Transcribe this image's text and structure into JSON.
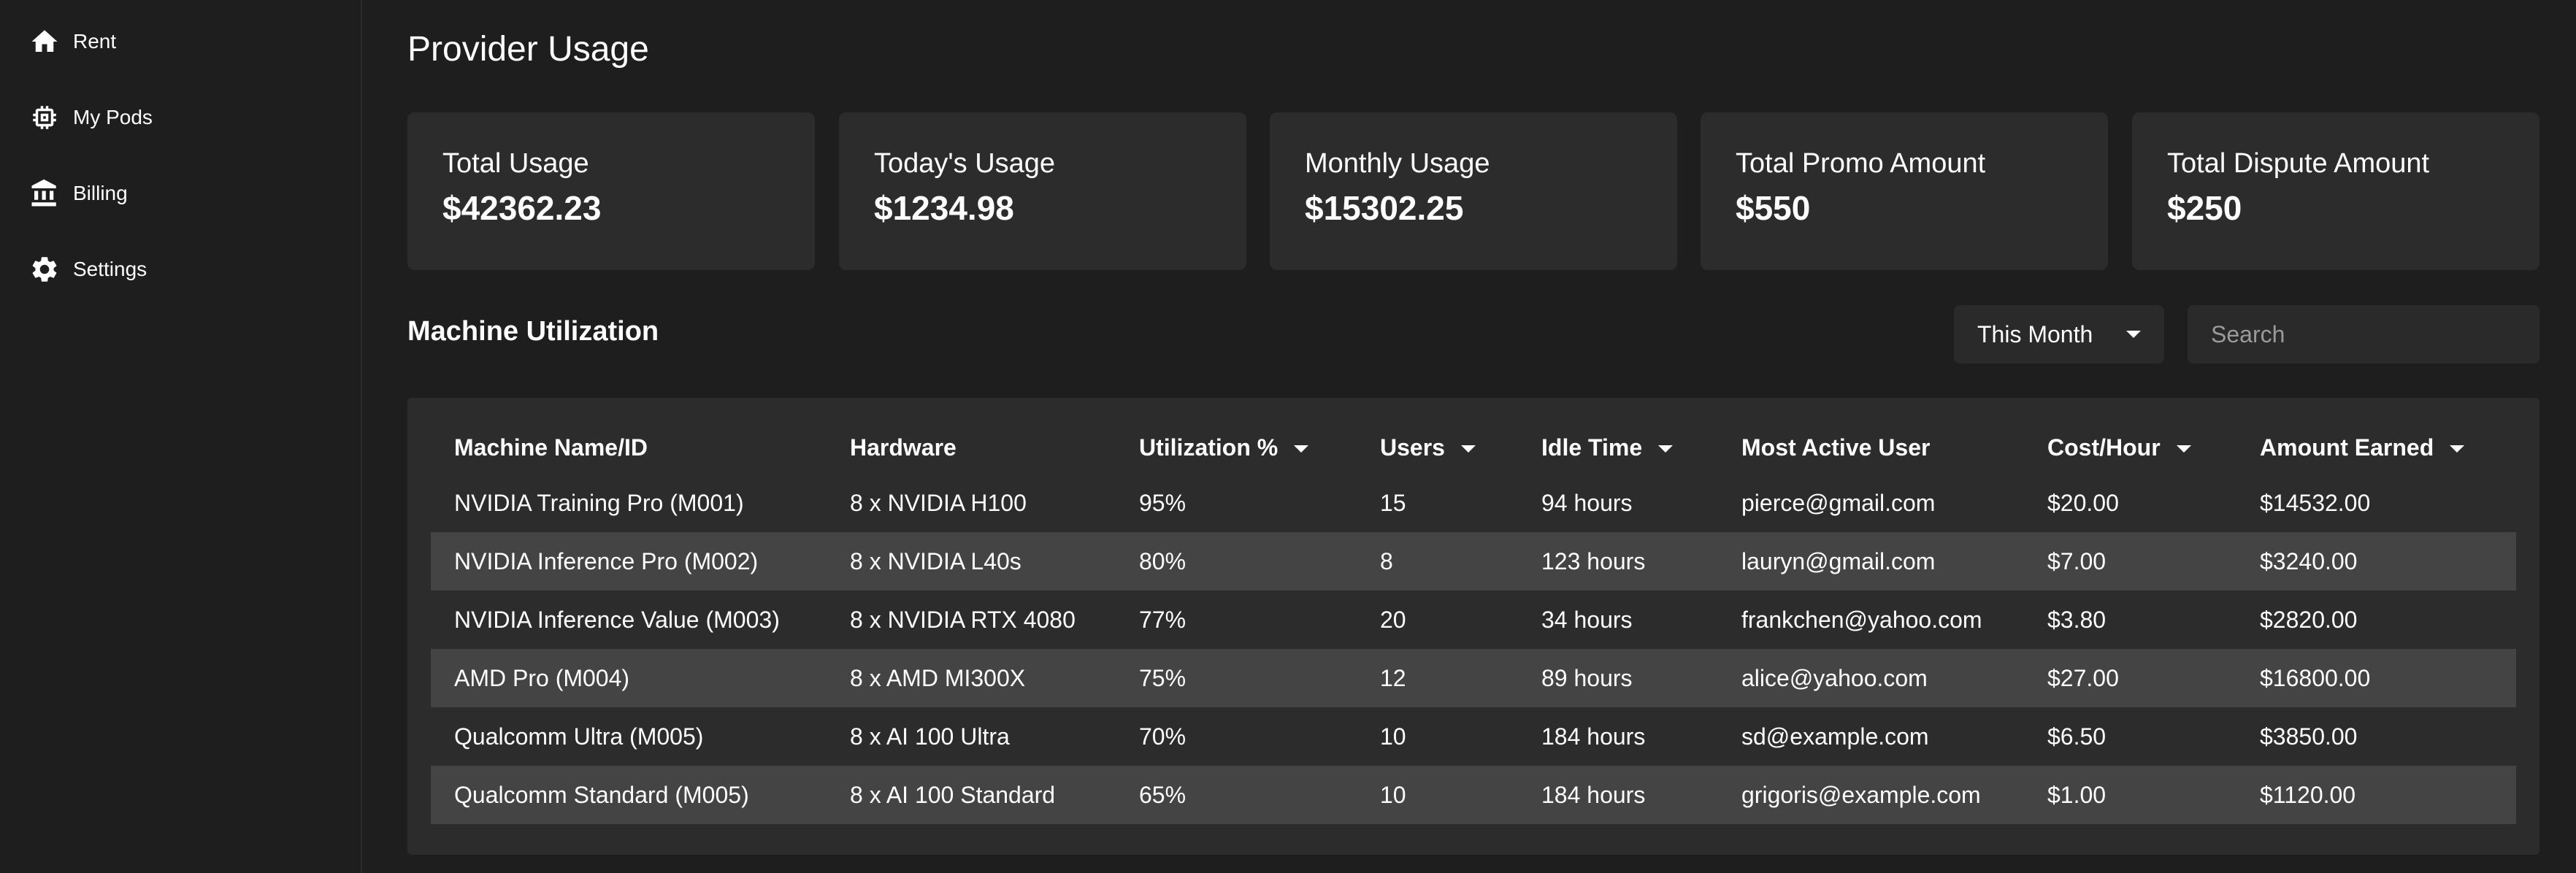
{
  "sidebar": {
    "items": [
      {
        "label": "Rent",
        "icon": "home-icon"
      },
      {
        "label": "My Pods",
        "icon": "chip-icon"
      },
      {
        "label": "Billing",
        "icon": "bank-icon"
      },
      {
        "label": "Settings",
        "icon": "gear-icon"
      }
    ]
  },
  "page": {
    "title": "Provider Usage"
  },
  "cards": [
    {
      "label": "Total Usage",
      "value": "$42362.23"
    },
    {
      "label": "Today's Usage",
      "value": "$1234.98"
    },
    {
      "label": "Monthly Usage",
      "value": "$15302.25"
    },
    {
      "label": "Total Promo Amount",
      "value": "$550"
    },
    {
      "label": "Total Dispute Amount",
      "value": "$250"
    }
  ],
  "utilization": {
    "title": "Machine Utilization",
    "period": "This Month",
    "search_placeholder": "Search",
    "columns": [
      {
        "label": "Machine Name/ID",
        "sortable": false
      },
      {
        "label": "Hardware",
        "sortable": false
      },
      {
        "label": "Utilization %",
        "sortable": true
      },
      {
        "label": "Users",
        "sortable": true
      },
      {
        "label": "Idle Time",
        "sortable": true
      },
      {
        "label": "Most Active User",
        "sortable": false
      },
      {
        "label": "Cost/Hour",
        "sortable": true
      },
      {
        "label": "Amount Earned",
        "sortable": true
      }
    ],
    "rows": [
      [
        "NVIDIA Training Pro (M001)",
        "8 x NVIDIA H100",
        "95%",
        "15",
        "94 hours",
        "pierce@gmail.com",
        "$20.00",
        "$14532.00"
      ],
      [
        "NVIDIA Inference Pro (M002)",
        "8 x NVIDIA L40s",
        "80%",
        "8",
        "123 hours",
        "lauryn@gmail.com",
        "$7.00",
        "$3240.00"
      ],
      [
        "NVIDIA Inference Value (M003)",
        "8 x NVIDIA RTX 4080",
        "77%",
        "20",
        "34 hours",
        "frankchen@yahoo.com",
        "$3.80",
        "$2820.00"
      ],
      [
        "AMD Pro (M004)",
        "8 x AMD MI300X",
        "75%",
        "12",
        "89 hours",
        "alice@yahoo.com",
        "$27.00",
        "$16800.00"
      ],
      [
        "Qualcomm Ultra (M005)",
        "8 x AI 100 Ultra",
        "70%",
        "10",
        "184 hours",
        "sd@example.com",
        "$6.50",
        "$3850.00"
      ],
      [
        "Qualcomm Standard (M005)",
        "8 x AI 100 Standard",
        "65%",
        "10",
        "184 hours",
        "grigoris@example.com",
        "$1.00",
        "$1120.00"
      ]
    ]
  },
  "colors": {
    "background": "#1e1e1e",
    "card": "#2c2c2c",
    "row_alt": "#444444",
    "text": "#ffffff"
  }
}
